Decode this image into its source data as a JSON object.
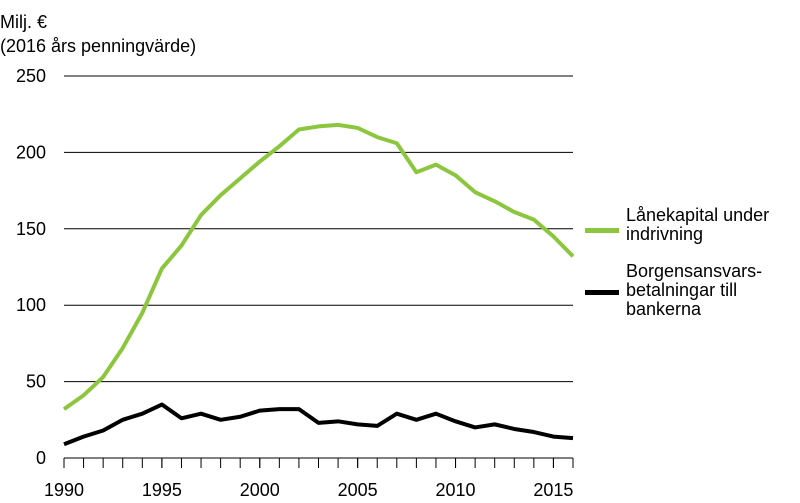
{
  "chart_data": {
    "type": "line",
    "ylabel": [
      "Milj. €",
      "(2016 års penningvärde)"
    ],
    "x": [
      1990,
      1991,
      1992,
      1993,
      1994,
      1995,
      1996,
      1997,
      1998,
      1999,
      2000,
      2001,
      2002,
      2003,
      2004,
      2005,
      2006,
      2007,
      2008,
      2009,
      2010,
      2011,
      2012,
      2013,
      2014,
      2015,
      2016
    ],
    "series": [
      {
        "name": "Lånekapital under indrivning",
        "color": "#8cc63f",
        "values": [
          32,
          41,
          53,
          72,
          95,
          124,
          139,
          159,
          172,
          183,
          194,
          204,
          215,
          217,
          218,
          216,
          210,
          206,
          187,
          192,
          185,
          174,
          168,
          161,
          156,
          145,
          132
        ]
      },
      {
        "name": "Borgensansvars-betalningar till bankerna",
        "color": "#000000",
        "values": [
          9,
          14,
          18,
          25,
          29,
          35,
          26,
          29,
          25,
          27,
          31,
          32,
          32,
          23,
          24,
          22,
          21,
          29,
          25,
          29,
          24,
          20,
          22,
          19,
          17,
          14,
          13
        ]
      }
    ],
    "xlim": [
      1990,
      2016
    ],
    "xticks": [
      1990,
      1995,
      2000,
      2005,
      2010,
      2015
    ],
    "ylim": [
      0,
      250
    ],
    "yticks": [
      0,
      50,
      100,
      150,
      200,
      250
    ],
    "grid": true,
    "legend": "right"
  }
}
